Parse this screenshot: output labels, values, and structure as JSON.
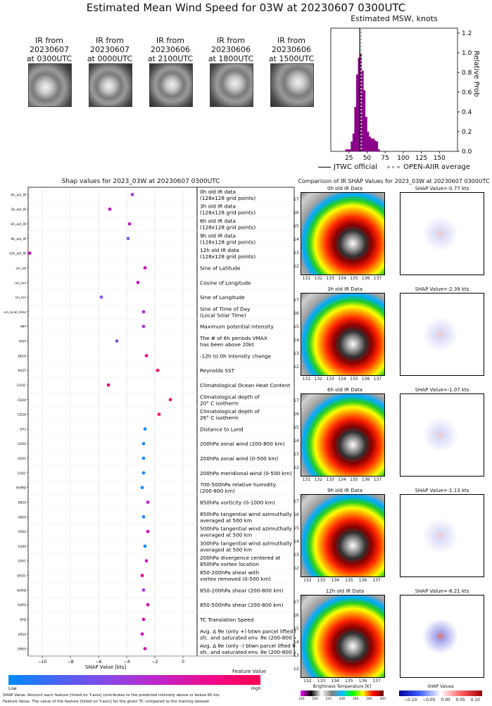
{
  "title": "Estimated Mean Wind Speed for 03W at 20230607 0300UTC",
  "ir_thumbnails": [
    {
      "label": "IR from\n20230607\nat 0300UTC"
    },
    {
      "label": "IR from\n20230607\nat 0000UTC"
    },
    {
      "label": "IR from\n20230606\nat 2100UTC"
    },
    {
      "label": "IR from\n20230606\nat 1800UTC"
    },
    {
      "label": "IR from\n20230606\nat 1500UTC"
    }
  ],
  "histogram": {
    "title": "Estimated MSW, knots",
    "ylabel": "Relative Prob",
    "legend_jtwc": "JTWC official",
    "legend_openair": "OPEN-AIIR average",
    "bar_color": "#8b008b"
  },
  "shap_panel": {
    "title": "Shap values for 2023_03W at 20230607 0300UTC",
    "xlabel": "SHAP Value [kts]",
    "colorbar_title": "Feature Value",
    "colorbar_low": "Low",
    "colorbar_high": "High",
    "note1": "SHAP Value: Amount each feature [listed on Y-axis] contributes to the predicted intensity above or below 60 kts",
    "note2": "Feature Value: The value of the feature [listed on Y-axis] for the given TC compared to the training dataset"
  },
  "ir_panel": {
    "title": "Comparison of IR SHAP Values for 2023_03W at 20230607 0300UTC",
    "bt_label": "Brightness Temperature [K]",
    "bt_ticks": [
      "180",
      "200",
      "220",
      "240",
      "260",
      "280",
      "300"
    ],
    "shap_cb_label": "SHAP Values",
    "shap_cb_ticks": [
      "−0.10",
      "−0.05",
      "0.00",
      "0.05",
      "0.10"
    ],
    "rows": [
      {
        "ir_title": "0h old IR Data",
        "shap_title": "SHAP Value=-0.77 kts",
        "xticks": [
          "131",
          "132",
          "133",
          "134",
          "135",
          "136",
          "137"
        ]
      },
      {
        "ir_title": "3h old IR Data",
        "shap_title": "SHAP Value=-2.39 kts",
        "xticks": [
          "131",
          "132",
          "133",
          "134",
          "135",
          "136",
          "137"
        ]
      },
      {
        "ir_title": "6h old IR Data",
        "shap_title": "SHAP Value=-1.07 kts",
        "xticks": [
          "131",
          "132",
          "133",
          "134",
          "135",
          "136",
          "137"
        ]
      },
      {
        "ir_title": "9h old IR Data",
        "shap_title": "SHAP Value=-1.13 kts",
        "xticks": [
          "132",
          "133",
          "134",
          "135",
          "136",
          "137"
        ]
      },
      {
        "ir_title": "12h old IR Data",
        "shap_title": "SHAP Value=-8.21 kts",
        "xticks": [
          "132",
          "133",
          "134",
          "135",
          "136",
          "137"
        ]
      }
    ],
    "yticks": [
      "17",
      "16",
      "15",
      "14",
      "13",
      "12"
    ]
  },
  "chart_data": [
    {
      "type": "bar",
      "title": "Estimated MSW, knots",
      "xlabel": "",
      "ylabel": "Relative Prob",
      "xlim": [
        0,
        175
      ],
      "ylim": [
        0,
        1.25
      ],
      "xticks": [
        25,
        50,
        75,
        100,
        125,
        150
      ],
      "yticks": [
        0.0,
        0.2,
        0.4,
        0.6,
        0.8,
        1.0,
        1.2
      ],
      "bin_width": 2.5,
      "bins": [
        {
          "x": 21.25,
          "v": 0.02
        },
        {
          "x": 23.75,
          "v": 0.02
        },
        {
          "x": 26.25,
          "v": 0.02
        },
        {
          "x": 28.75,
          "v": 0.1
        },
        {
          "x": 31.25,
          "v": 0.18
        },
        {
          "x": 33.75,
          "v": 0.45
        },
        {
          "x": 36.25,
          "v": 0.78
        },
        {
          "x": 38.75,
          "v": 0.95
        },
        {
          "x": 41.25,
          "v": 1.0
        },
        {
          "x": 43.75,
          "v": 0.82
        },
        {
          "x": 46.25,
          "v": 0.62
        },
        {
          "x": 48.75,
          "v": 0.35
        },
        {
          "x": 51.25,
          "v": 0.2
        },
        {
          "x": 53.75,
          "v": 0.15
        },
        {
          "x": 56.25,
          "v": 0.13
        },
        {
          "x": 58.75,
          "v": 0.13
        },
        {
          "x": 61.25,
          "v": 0.11
        },
        {
          "x": 63.75,
          "v": 0.1
        },
        {
          "x": 66.25,
          "v": 0.02
        }
      ],
      "jtwc_official": 40,
      "openair_average": 42
    },
    {
      "type": "scatter",
      "title": "Shap values for 2023_03W at 20230607 0300UTC",
      "xlabel": "SHAP Value [kts]",
      "xlim": [
        -11,
        1
      ],
      "xticks": [
        -10,
        -8,
        -6,
        -4,
        -2,
        0
      ],
      "features": [
        {
          "name": "0h_old_IR",
          "desc": "0h old IR data\n(128x128 grid points)",
          "shap": -3.6,
          "color": "#a438e4"
        },
        {
          "name": "3h_old_IR",
          "desc": "3h old IR data\n(128x128 grid points)",
          "shap": -5.2,
          "color": "#cc12c4"
        },
        {
          "name": "6h_old_IR",
          "desc": "6h old IR data\n(128x128 grid points)",
          "shap": -3.8,
          "color": "#c41ac8"
        },
        {
          "name": "9h_old_IR",
          "desc": "9h old IR data\n(128x128 grid points)",
          "shap": -3.9,
          "color": "#7a5ee8"
        },
        {
          "name": "12h_old_IR",
          "desc": "12h old IR data\n(128x128 grid points)",
          "shap": -10.9,
          "color": "#d010c0"
        },
        {
          "name": "sin_lat",
          "desc": "Sine of Latitude",
          "shap": -2.7,
          "color": "#d40cbc"
        },
        {
          "name": "cos_lon",
          "desc": "Cosine of Longitude",
          "shap": -3.2,
          "color": "#cc12c4"
        },
        {
          "name": "sin_lon",
          "desc": "Sine of Longitude",
          "shap": -5.8,
          "color": "#8a52e4"
        },
        {
          "name": "sin_local_time",
          "desc": "Sine of Time of Day\n(Local Solar Time)",
          "shap": -2.8,
          "color": "#b02cd8"
        },
        {
          "name": "MPI",
          "desc": "Maximum potential intensity",
          "shap": -2.8,
          "color": "#b030dc"
        },
        {
          "name": "HIST",
          "desc": "The # of 6h periods VMAX\nhas been above 20kt",
          "shap": -4.7,
          "color": "#8850e0"
        },
        {
          "name": "DELV",
          "desc": "-12h to 0h Intensity change",
          "shap": -2.6,
          "color": "#e0089c"
        },
        {
          "name": "RSST",
          "desc": "Reynolds SST",
          "shap": -1.8,
          "color": "#ff0060"
        },
        {
          "name": "COHC",
          "desc": "Climatological Ocean Heat Content",
          "shap": -5.3,
          "color": "#e00098"
        },
        {
          "name": "CD20",
          "desc": "Climatological depth of\n20° C isotherm",
          "shap": -0.9,
          "color": "#ff1058"
        },
        {
          "name": "CD26",
          "desc": "Climatological depth of\n26° C isotherm",
          "shap": -1.7,
          "color": "#ff1060"
        },
        {
          "name": "DTL",
          "desc": "Distance to Land",
          "shap": -2.7,
          "color": "#1a8cff"
        },
        {
          "name": "U200",
          "desc": "200hPa zonal wind (200-800 km)",
          "shap": -2.8,
          "color": "#1a8cff"
        },
        {
          "name": "U20C",
          "desc": "200hPa zonal wind (0-500 km)",
          "shap": -2.8,
          "color": "#1a8cff"
        },
        {
          "name": "V20C",
          "desc": "200hPa meridional wind (0-500 km)",
          "shap": -2.8,
          "color": "#1a8cff"
        },
        {
          "name": "RHMD",
          "desc": "700-500hPa relative humidity\n(200-800 km)",
          "shap": -2.9,
          "color": "#1a8cff"
        },
        {
          "name": "Z850",
          "desc": "850hPa vorticity (0-1000 km)",
          "shap": -2.5,
          "color": "#c020c8"
        },
        {
          "name": "V850",
          "desc": "850hPa tangential wind azimuthally\naveraged at 500 km",
          "shap": -2.8,
          "color": "#1a8cff"
        },
        {
          "name": "V500",
          "desc": "500hPa tangential wind azimuthally\naveraged at 500 km",
          "shap": -2.5,
          "color": "#e0089c"
        },
        {
          "name": "V300",
          "desc": "300hPa tangential wind azimuthally\naveraged at 500 km",
          "shap": -2.7,
          "color": "#1a8cff"
        },
        {
          "name": "DIVC",
          "desc": "200hPa divergence centered at\n850hPa vortex location",
          "shap": -2.6,
          "color": "#d010c0"
        },
        {
          "name": "SHDC",
          "desc": "850-200hPa shear with\nvortex removed (0-500 km)",
          "shap": -2.9,
          "color": "#e8048c"
        },
        {
          "name": "SHRD",
          "desc": "850-200hPa shear (200-800 km)",
          "shap": -2.8,
          "color": "#b030dc"
        },
        {
          "name": "SHRS",
          "desc": "850-500hPa shear (200-800 km)",
          "shap": -2.5,
          "color": "#e0089c"
        },
        {
          "name": "SPD",
          "desc": "TC Translation Speed",
          "shap": -2.8,
          "color": "#d010c0"
        },
        {
          "name": "EPSS",
          "desc": "Avg. Δ θe (only +) btwn parcel lifted from\nsfc. and saturated env. θe (200-800 km)",
          "shap": -2.9,
          "color": "#d010c0"
        },
        {
          "name": "ENSS",
          "desc": "Avg. Δ θe (only -) btwn parcel lifted from\nsfc. and saturated env. θe (200-800 km)",
          "shap": -2.7,
          "color": "#e0089c"
        }
      ]
    }
  ]
}
